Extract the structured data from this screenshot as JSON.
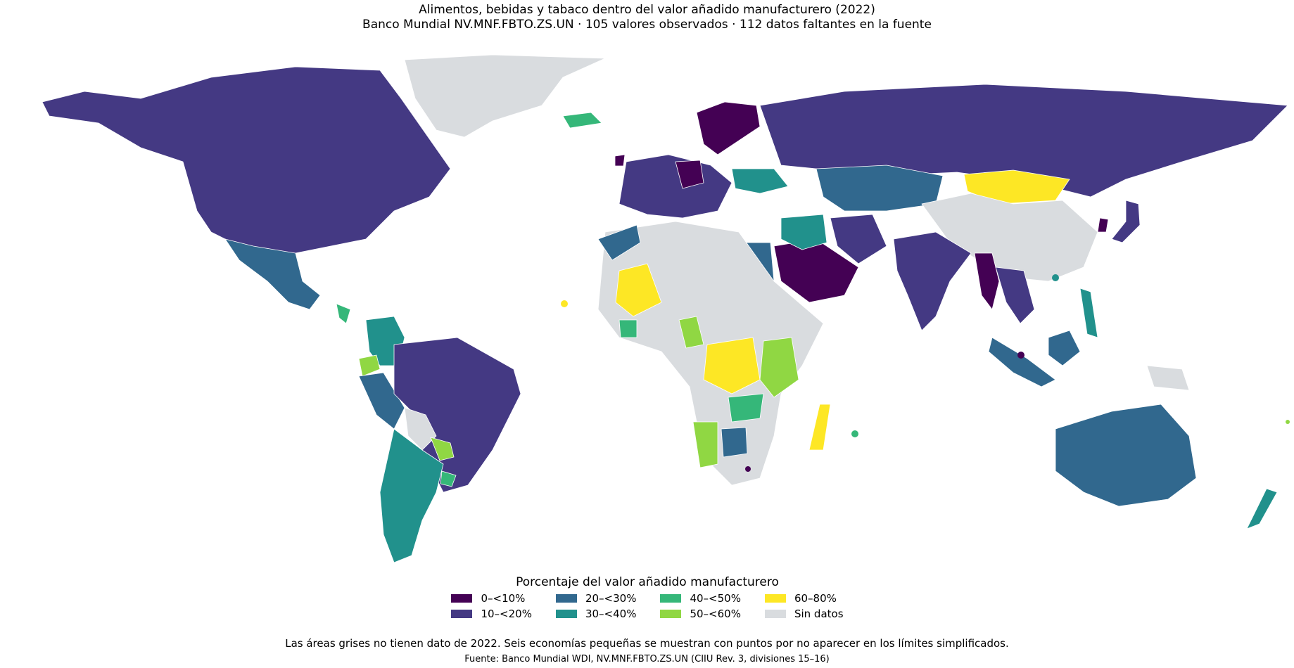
{
  "header": {
    "title": "Alimentos, bebidas y tabaco dentro del valor añadido manufacturero (2022)",
    "subtitle": "Banco Mundial NV.MNF.FBTO.ZS.UN · 105 valores observados · 112 datos faltantes en la fuente"
  },
  "legend": {
    "title": "Porcentaje del valor añadido manufacturero",
    "items": [
      {
        "label": "0–<10%",
        "color": "#440154"
      },
      {
        "label": "10–<20%",
        "color": "#443983"
      },
      {
        "label": "20–<30%",
        "color": "#31688e"
      },
      {
        "label": "30–<40%",
        "color": "#21918c"
      },
      {
        "label": "40–<50%",
        "color": "#35b779"
      },
      {
        "label": "50–<60%",
        "color": "#90d743"
      },
      {
        "label": "60–80%",
        "color": "#fde725"
      },
      {
        "label": "Sin datos",
        "color": "#d9dcdf"
      }
    ]
  },
  "note": "Las áreas grises no tienen dato de 2022. Seis economías pequeñas se muestran con puntos por no aparecer en los límites simplificados.",
  "source": "Fuente: Banco Mundial WDI, NV.MNF.FBTO.ZS.UN (CIIU Rev. 3, divisiones 15–16)"
}
